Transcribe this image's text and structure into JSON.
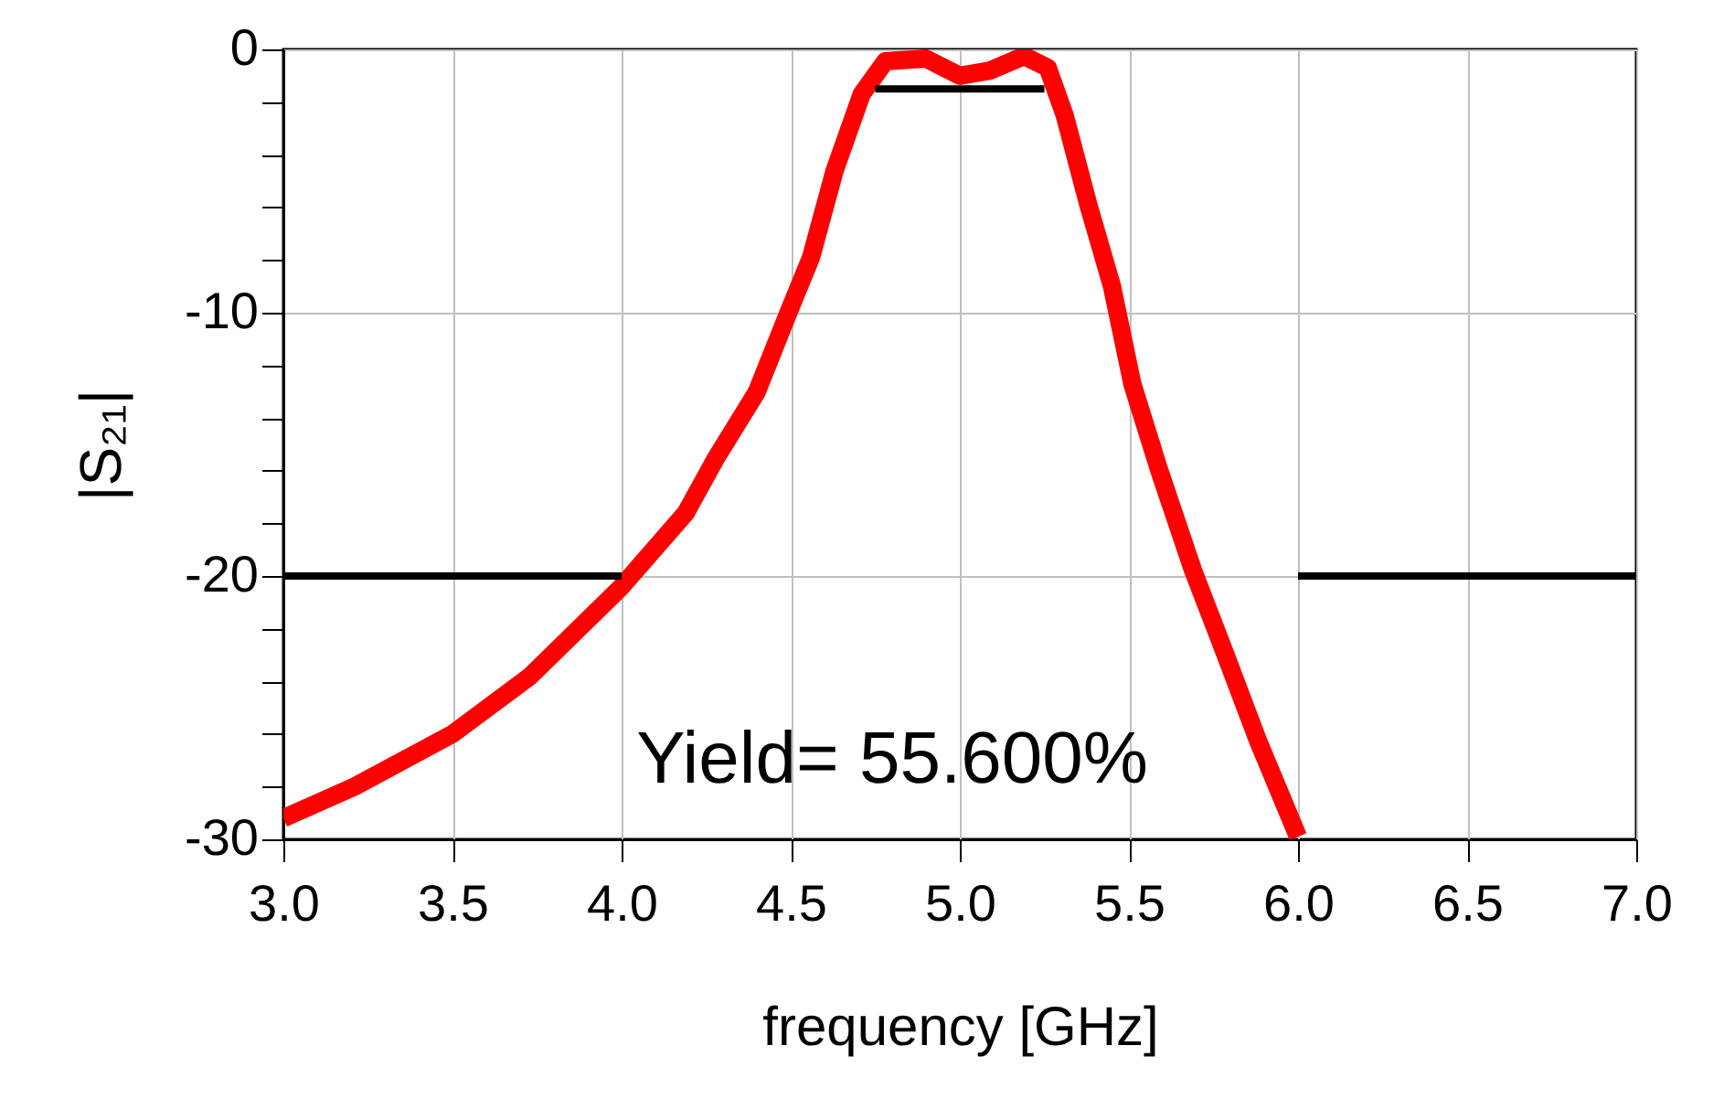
{
  "chart_data": {
    "type": "line",
    "xlabel": "frequency [GHz]",
    "ylabel": "|S₂₁|",
    "annotations": [
      "Yield= 55.600%"
    ],
    "xlim": [
      3,
      7
    ],
    "xticks": [
      {
        "value": 3,
        "label": "3.0"
      },
      {
        "value": 3.5,
        "label": "3.5"
      },
      {
        "value": 4,
        "label": "4.0"
      },
      {
        "value": 4.5,
        "label": "4.5"
      },
      {
        "value": 5,
        "label": "5.0"
      },
      {
        "value": 5.5,
        "label": "5.5"
      },
      {
        "value": 6,
        "label": "6.0"
      },
      {
        "value": 6.5,
        "label": "6.5"
      },
      {
        "value": 7,
        "label": "7.0"
      }
    ],
    "ylim": [
      -30,
      0
    ],
    "yticks": [
      0,
      {
        "value": -2,
        "label": null
      },
      {
        "value": -4,
        "label": null
      },
      {
        "value": -6,
        "label": null
      },
      {
        "value": -8,
        "label": null
      },
      -10,
      {
        "value": -12,
        "label": null
      },
      {
        "value": -14,
        "label": null
      },
      {
        "value": -16,
        "label": null
      },
      {
        "value": -18,
        "label": null
      },
      -20,
      {
        "value": -22,
        "label": null
      },
      {
        "value": -24,
        "label": null
      },
      {
        "value": -26,
        "label": null
      },
      {
        "value": -28,
        "label": null
      },
      -30
    ],
    "grid": true,
    "marker": "none",
    "line_style": "solid",
    "series": [
      {
        "color": "#ff0000",
        "x": [
          3.0,
          3.21,
          3.5,
          3.73,
          4.0,
          4.19,
          4.28,
          4.4,
          4.49,
          4.56,
          4.63,
          4.71,
          4.78,
          4.9,
          5.0,
          5.09,
          5.19,
          5.26,
          5.31,
          5.38,
          5.45,
          5.51,
          5.59,
          5.69,
          5.78,
          5.88,
          6.0
        ],
        "values": [
          -29.2,
          -28.0,
          -26.0,
          -23.8,
          -20.4,
          -17.6,
          -15.5,
          -13.0,
          -10.1,
          -7.9,
          -4.6,
          -1.7,
          -0.45,
          -0.35,
          -1.0,
          -0.8,
          -0.25,
          -0.7,
          -2.5,
          -5.9,
          -9.0,
          -12.7,
          -16.0,
          -19.8,
          -22.8,
          -26.2,
          -29.9
        ]
      },
      {
        "color": "#000000",
        "x": [
          3,
          4
        ],
        "values": [
          -20,
          -20
        ]
      },
      {
        "color": "#000000",
        "x": [
          4.75,
          5.25
        ],
        "values": [
          -1.5,
          -1.5
        ]
      },
      {
        "color": "#000000",
        "x": [
          6,
          7
        ],
        "values": [
          -20,
          -20
        ]
      }
    ]
  }
}
